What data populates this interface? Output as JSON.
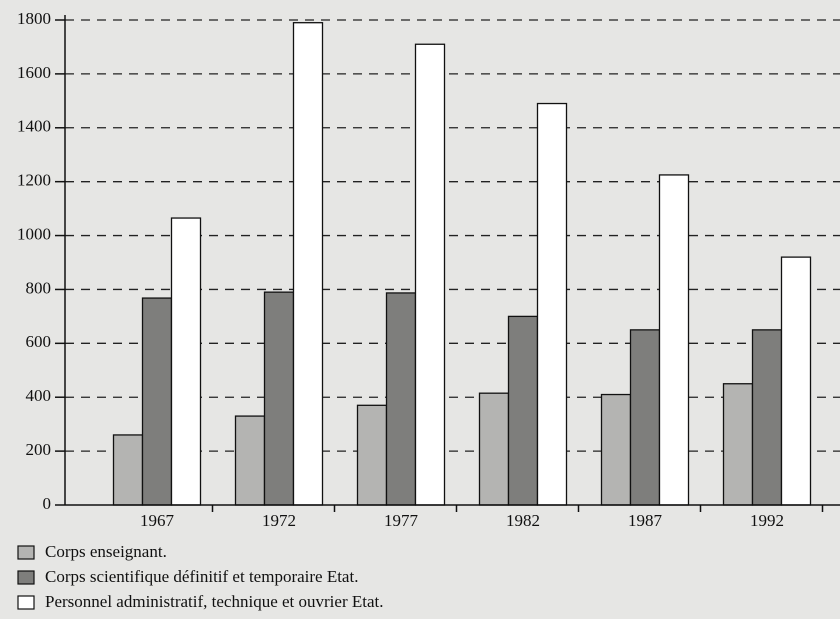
{
  "chart_data": {
    "type": "bar",
    "categories": [
      "1967",
      "1972",
      "1977",
      "1982",
      "1987",
      "1992"
    ],
    "series": [
      {
        "name": "Corps enseignant.",
        "color": "#b4b4b2",
        "values": [
          260,
          330,
          370,
          415,
          410,
          450
        ]
      },
      {
        "name": "Corps scientifique définitif et temporaire Etat.",
        "color": "#7e7e7c",
        "values": [
          768,
          790,
          787,
          700,
          650,
          650
        ]
      },
      {
        "name": "Personnel administratif, technique et ouvrier Etat.",
        "color": "#ffffff",
        "values": [
          1065,
          1790,
          1710,
          1490,
          1225,
          920
        ]
      }
    ],
    "ylim": [
      0,
      1800
    ],
    "yticks": [
      0,
      200,
      400,
      600,
      800,
      1000,
      1200,
      1400,
      1600,
      1800
    ],
    "grid": true,
    "legend": "bottom-left"
  }
}
